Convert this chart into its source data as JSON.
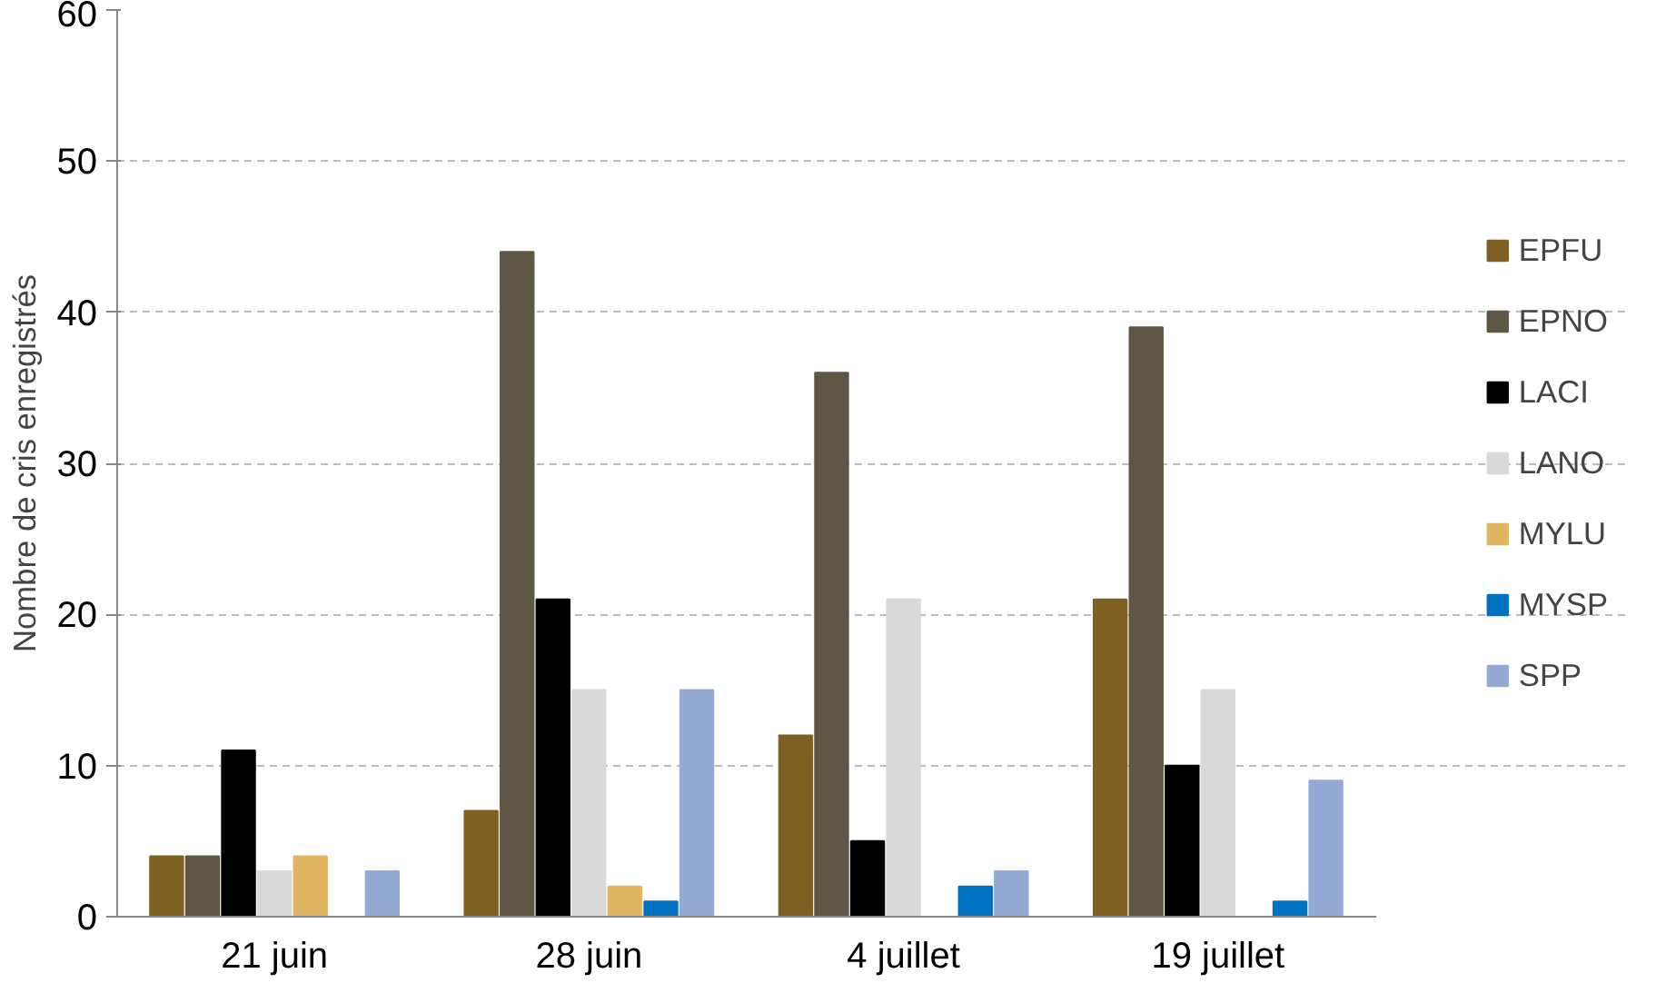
{
  "chart_data": {
    "type": "bar",
    "ylabel": "Nombre de cris enregistrés",
    "categories": [
      "21 juin",
      "28 juin",
      "4 juillet",
      "19 juillet"
    ],
    "series": [
      {
        "name": "EPFU",
        "color": "#7f6023",
        "values": [
          4,
          7,
          12,
          21
        ]
      },
      {
        "name": "EPNO",
        "color": "#5f5646",
        "values": [
          4,
          44,
          36,
          39
        ]
      },
      {
        "name": "LACI",
        "color": "#000000",
        "values": [
          11,
          21,
          5,
          10
        ]
      },
      {
        "name": "LANO",
        "color": "#d9d9d9",
        "values": [
          3,
          15,
          21,
          15
        ]
      },
      {
        "name": "MYLU",
        "color": "#e0b660",
        "values": [
          4,
          2,
          0,
          0
        ]
      },
      {
        "name": "MYSP",
        "color": "#0070c0",
        "values": [
          0,
          1,
          2,
          1
        ]
      },
      {
        "name": "SPP",
        "color": "#95aad3",
        "values": [
          3,
          15,
          3,
          9
        ]
      }
    ],
    "ylim": [
      0,
      60
    ],
    "yticks": [
      0,
      10,
      20,
      30,
      40,
      50,
      60
    ],
    "grid": "y",
    "legend": "right"
  }
}
